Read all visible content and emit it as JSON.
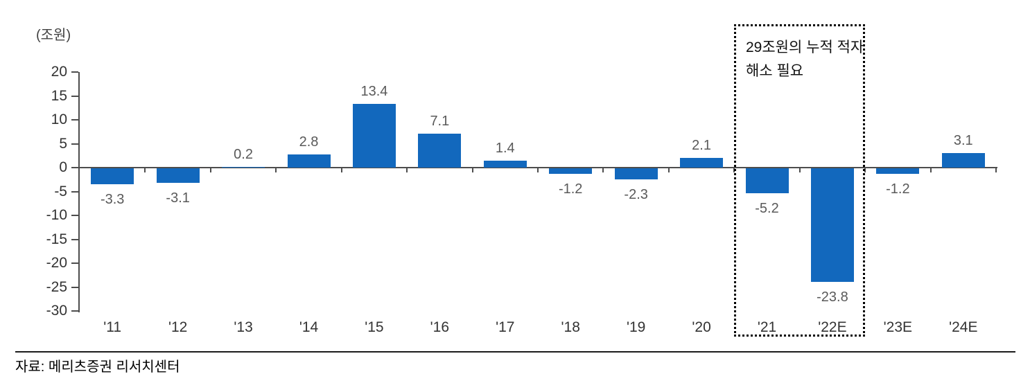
{
  "chart": {
    "unit_label": "(조원)",
    "source": "자료: 메리츠증권 리서치센터",
    "annotation": {
      "line1": "29조원의 누적 적자",
      "line2": "해소 필요"
    },
    "colors": {
      "bar": "#1268BD",
      "axis": "#4d4d4d",
      "value_label": "#595959",
      "tick_label": "#333333",
      "annotation_border": "#000000"
    }
  },
  "chart_data": {
    "type": "bar",
    "categories": [
      "'11",
      "'12",
      "'13",
      "'14",
      "'15",
      "'16",
      "'17",
      "'18",
      "'19",
      "'20",
      "'21",
      "'22E",
      "'23E",
      "'24E"
    ],
    "values": [
      -3.3,
      -3.1,
      0.2,
      2.8,
      13.4,
      7.1,
      1.4,
      -1.2,
      -2.3,
      2.1,
      -5.2,
      -23.8,
      -1.2,
      3.1
    ],
    "title": "",
    "xlabel": "",
    "ylabel": "(조원)",
    "ylim": [
      -30,
      20
    ],
    "ytick_step": 5,
    "grid": false,
    "legend": "none",
    "bar_color": "#1268BD",
    "annotation": {
      "text": "29조원의 누적 적자 해소 필요",
      "highlight_categories": [
        "'21",
        "'22E"
      ]
    }
  }
}
